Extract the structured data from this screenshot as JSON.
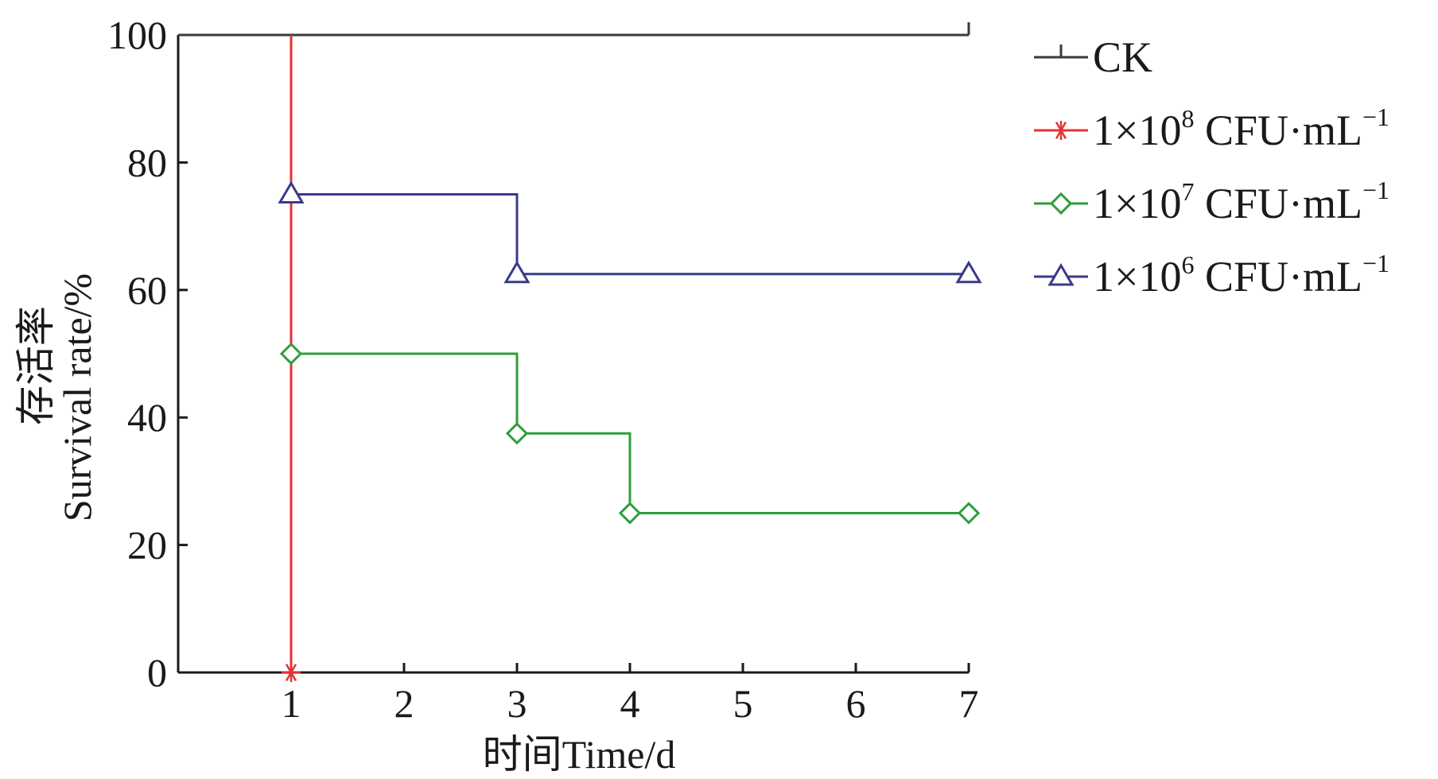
{
  "chart_data": {
    "type": "line",
    "step": true,
    "x_ticks": [
      1,
      2,
      3,
      4,
      5,
      6,
      7
    ],
    "y_ticks": [
      0,
      20,
      40,
      60,
      80,
      100
    ],
    "xlim": [
      0,
      7
    ],
    "ylim": [
      0,
      100
    ],
    "xlabel": "时间Time/d",
    "ylabel_cn": "存活率",
    "ylabel_en": "Survival rate/%",
    "grid": false,
    "legend_position": "right",
    "series": [
      {
        "key": "ck",
        "name": "CK",
        "name_sup": "",
        "name_unit": "",
        "color": "#3a3a3a",
        "marker": "bar",
        "points": [
          {
            "x": 0,
            "y": 100
          },
          {
            "x": 7,
            "y": 100
          }
        ],
        "markers": [
          {
            "x": 7,
            "y": 100
          }
        ]
      },
      {
        "key": "s1e8",
        "name": "1×10",
        "name_sup": "8",
        "name_unit": " CFU·mL",
        "color": "#e63232",
        "marker": "asterisk",
        "points": [
          {
            "x": 1,
            "y": 100
          },
          {
            "x": 1,
            "y": 0
          }
        ],
        "markers": [
          {
            "x": 1,
            "y": 0
          }
        ]
      },
      {
        "key": "s1e7",
        "name": "1×10",
        "name_sup": "7",
        "name_unit": " CFU·mL",
        "color": "#2e9e3a",
        "marker": "diamond",
        "points": [
          {
            "x": 1,
            "y": 50
          },
          {
            "x": 3,
            "y": 50
          },
          {
            "x": 3,
            "y": 37.5
          },
          {
            "x": 4,
            "y": 37.5
          },
          {
            "x": 4,
            "y": 25
          },
          {
            "x": 7,
            "y": 25
          }
        ],
        "markers": [
          {
            "x": 1,
            "y": 50
          },
          {
            "x": 3,
            "y": 37.5
          },
          {
            "x": 4,
            "y": 25
          },
          {
            "x": 7,
            "y": 25
          }
        ]
      },
      {
        "key": "s1e6",
        "name": "1×10",
        "name_sup": "6",
        "name_unit": " CFU·mL",
        "color": "#3a3a8c",
        "marker": "triangle",
        "points": [
          {
            "x": 1,
            "y": 75
          },
          {
            "x": 3,
            "y": 75
          },
          {
            "x": 3,
            "y": 62.5
          },
          {
            "x": 7,
            "y": 62.5
          }
        ],
        "markers": [
          {
            "x": 1,
            "y": 75
          },
          {
            "x": 3,
            "y": 62.5
          },
          {
            "x": 7,
            "y": 62.5
          }
        ]
      }
    ],
    "unit_sup": "−1"
  }
}
